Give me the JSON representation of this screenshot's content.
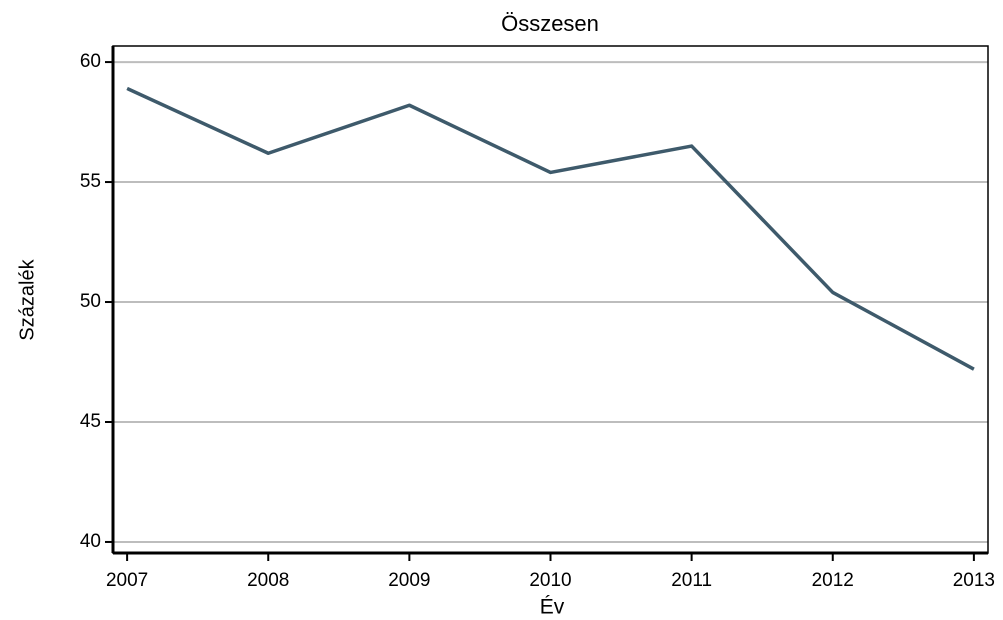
{
  "chart_data": {
    "type": "line",
    "title": "Összesen",
    "x_label": "Év",
    "y_label": "Százalék",
    "x": [
      2007,
      2008,
      2009,
      2010,
      2011,
      2012,
      2013
    ],
    "series": [
      {
        "name": "Összesen",
        "color": "#3e5a6b",
        "values": [
          58.9,
          56.2,
          58.2,
          55.4,
          56.5,
          50.4,
          47.2
        ]
      }
    ],
    "xlim": [
      2006.9,
      2013.1
    ],
    "xticks": [
      2007,
      2008,
      2009,
      2010,
      2011,
      2012,
      2013
    ],
    "ylim": [
      39.54,
      60.67
    ],
    "yticks": [
      40,
      45,
      50,
      55,
      60
    ],
    "grid": true,
    "legend": false
  }
}
